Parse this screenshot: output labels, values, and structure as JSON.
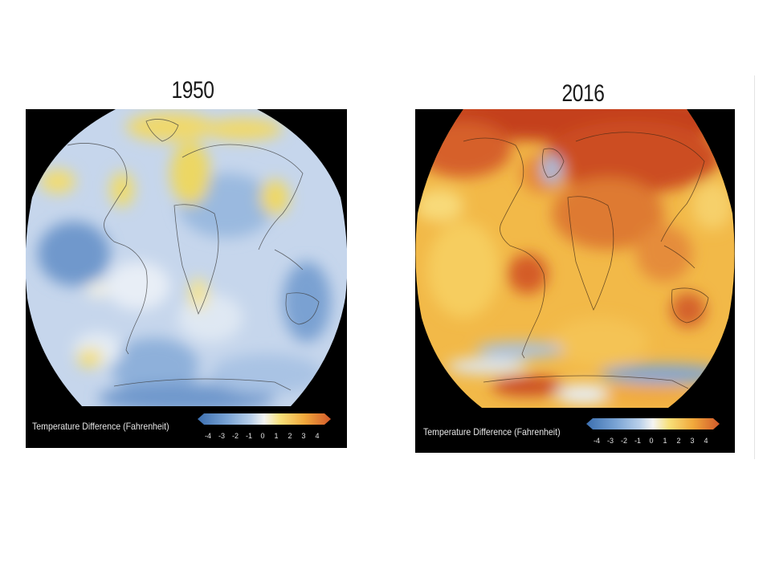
{
  "panels": [
    {
      "year": "1950",
      "legend_label": "Temperature Difference (Fahrenheit)",
      "legend_ticks": [
        "-4",
        "-3",
        "-2",
        "-1",
        "0",
        "1",
        "2",
        "3",
        "4"
      ],
      "dominant_anomaly": "cool",
      "base_color": "#c3d3ec"
    },
    {
      "year": "2016",
      "legend_label": "Temperature Difference (Fahrenheit)",
      "legend_ticks": [
        "-4",
        "-3",
        "-2",
        "-1",
        "0",
        "1",
        "2",
        "3",
        "4"
      ],
      "dominant_anomaly": "warm",
      "base_color": "#f2b442"
    }
  ],
  "colorscale": [
    "#3c6fb0",
    "#79a3d4",
    "#b9d0ea",
    "#f4f4f2",
    "#f8e07a",
    "#f1a93c",
    "#d2592a"
  ]
}
